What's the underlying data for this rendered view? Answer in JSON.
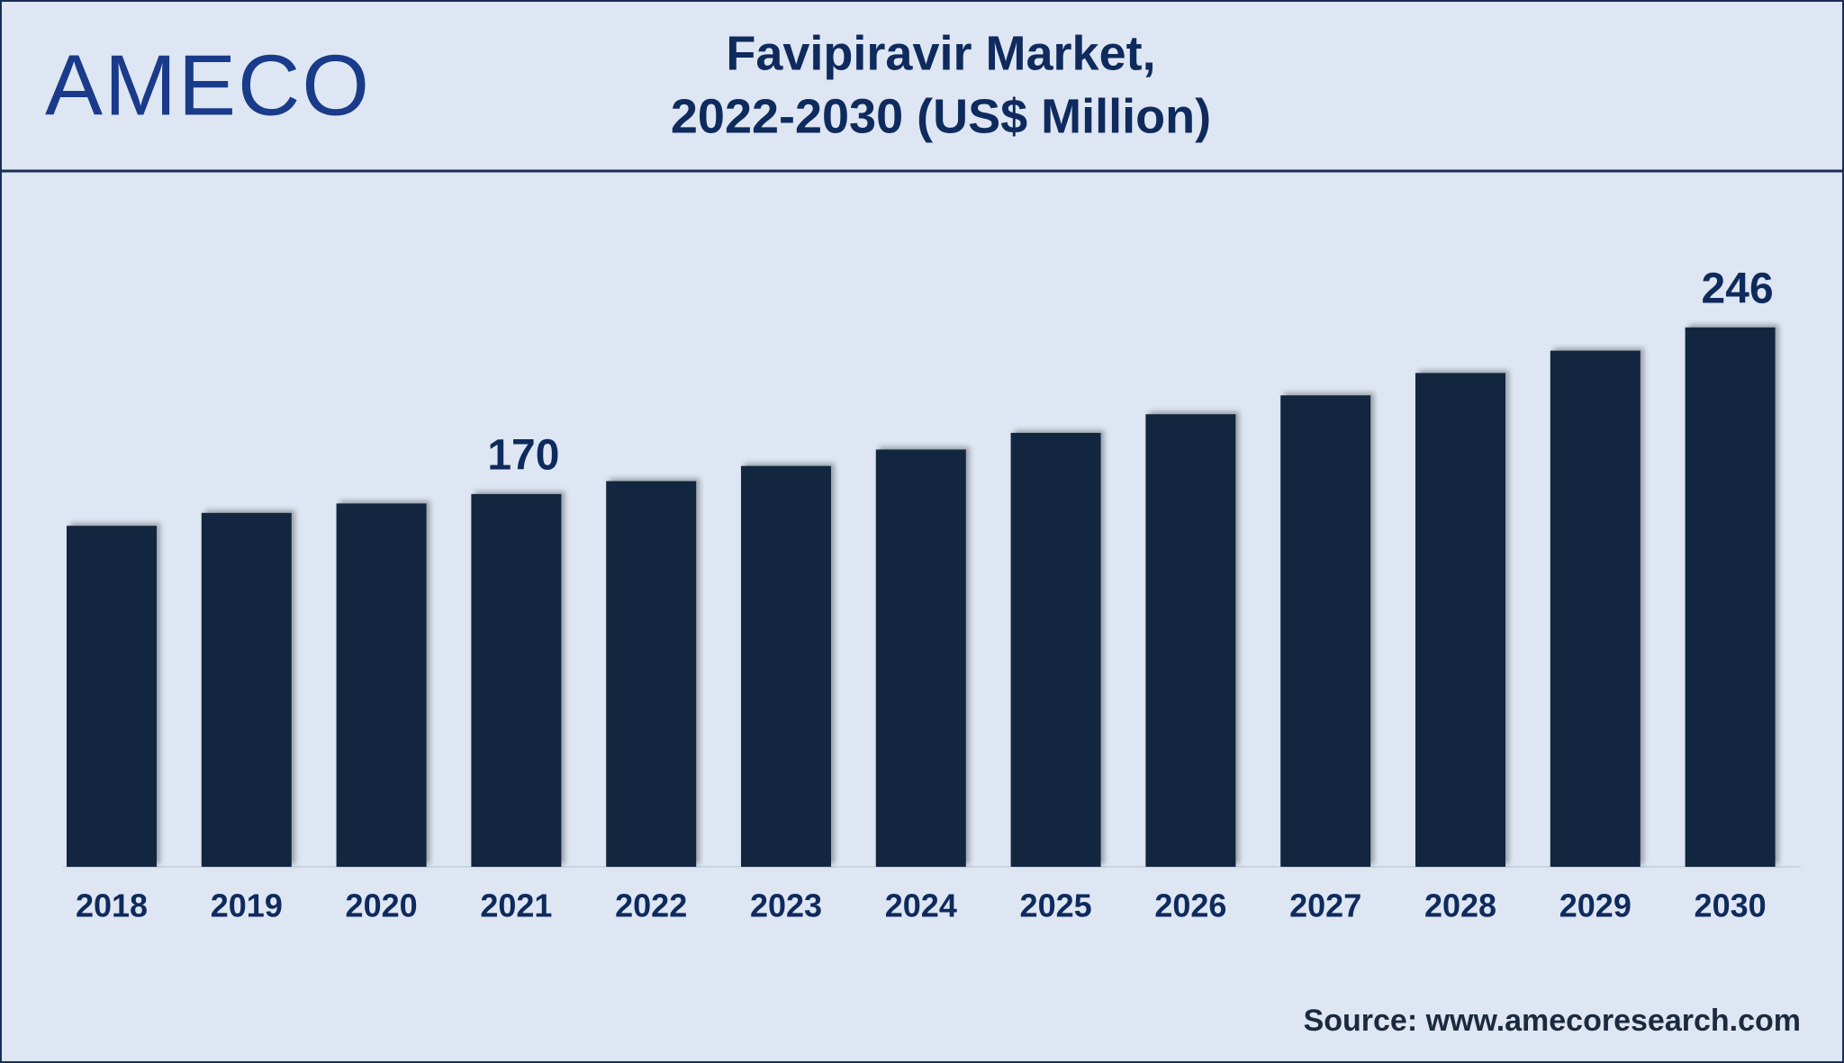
{
  "logo": "AMECO",
  "chart_data": {
    "type": "bar",
    "title": [
      "Favipiravir Market,",
      "2022-2030 (US$ Million)"
    ],
    "categories": [
      "2018",
      "2019",
      "2020",
      "2021",
      "2022",
      "2023",
      "2024",
      "2025",
      "2026",
      "2027",
      "2028",
      "2029",
      "2030"
    ],
    "values": [
      155.5,
      161.4,
      165.7,
      170,
      175.9,
      182.8,
      190.3,
      197.9,
      206.4,
      215,
      225.2,
      235.4,
      246
    ],
    "value_labels": [
      null,
      null,
      null,
      "170",
      null,
      null,
      null,
      null,
      null,
      null,
      null,
      null,
      "246"
    ],
    "color": "#13263f",
    "ylim": [
      0,
      250
    ]
  },
  "source": "Source: www.amecoresearch.com"
}
